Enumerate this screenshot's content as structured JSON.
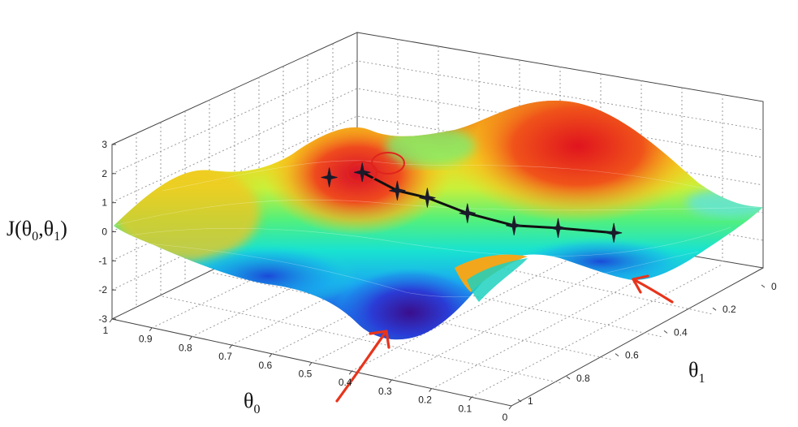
{
  "chart_data": {
    "type": "surface",
    "zlabel": "J(θ0,θ1)",
    "xlabel": "θ0",
    "ylabel": "θ1",
    "zlabel_parts": {
      "base": "J(θ",
      "s0": "0",
      "mid": ",θ",
      "s1": "1",
      "end": ")"
    },
    "xlabel_parts": {
      "base": "θ",
      "sub": "0"
    },
    "ylabel_parts": {
      "base": "θ",
      "sub": "1"
    },
    "z_ticks": [
      "3",
      "2",
      "1",
      "0",
      "-1",
      "-2",
      "-3"
    ],
    "z_values": [
      3,
      2,
      1,
      0,
      -1,
      -2,
      -3
    ],
    "theta0_ticks": [
      "1",
      "0.9",
      "0.8",
      "0.7",
      "0.6",
      "0.5",
      "0.4",
      "0.3",
      "0.2",
      "0.1",
      "0"
    ],
    "theta0_values": [
      1,
      0.9,
      0.8,
      0.7,
      0.6,
      0.5,
      0.4,
      0.3,
      0.2,
      0.1,
      0
    ],
    "theta1_ticks": [
      "0",
      "0.2",
      "0.4",
      "0.6",
      "0.8",
      "1"
    ],
    "theta1_values": [
      0,
      0.2,
      0.4,
      0.6,
      0.8,
      1
    ],
    "zlim": [
      -3,
      3
    ],
    "theta0_range": [
      0,
      1
    ],
    "theta1_range": [
      0,
      1
    ],
    "grid": true,
    "colormap": [
      "#2a1aa0",
      "#1f4fe0",
      "#1aa9f0",
      "#19e3d0",
      "#54f07a",
      "#c9f03a",
      "#f5d21e",
      "#f07a18",
      "#e0231c"
    ],
    "descent_path": [
      {
        "theta0": 0.62,
        "theta1": 0.26,
        "J": 2.0
      },
      {
        "theta0": 0.55,
        "theta1": 0.28,
        "J": 2.3
      },
      {
        "theta0": 0.5,
        "theta1": 0.34,
        "J": 1.5
      },
      {
        "theta0": 0.45,
        "theta1": 0.38,
        "J": 1.2
      },
      {
        "theta0": 0.4,
        "theta1": 0.46,
        "J": 0.4
      },
      {
        "theta0": 0.34,
        "theta1": 0.55,
        "J": -0.3
      },
      {
        "theta0": 0.28,
        "theta1": 0.63,
        "J": -0.6
      },
      {
        "theta0": 0.21,
        "theta1": 0.74,
        "J": -1.1
      }
    ],
    "annotations": [
      "circled starting points",
      "arrows marking local minima"
    ]
  }
}
